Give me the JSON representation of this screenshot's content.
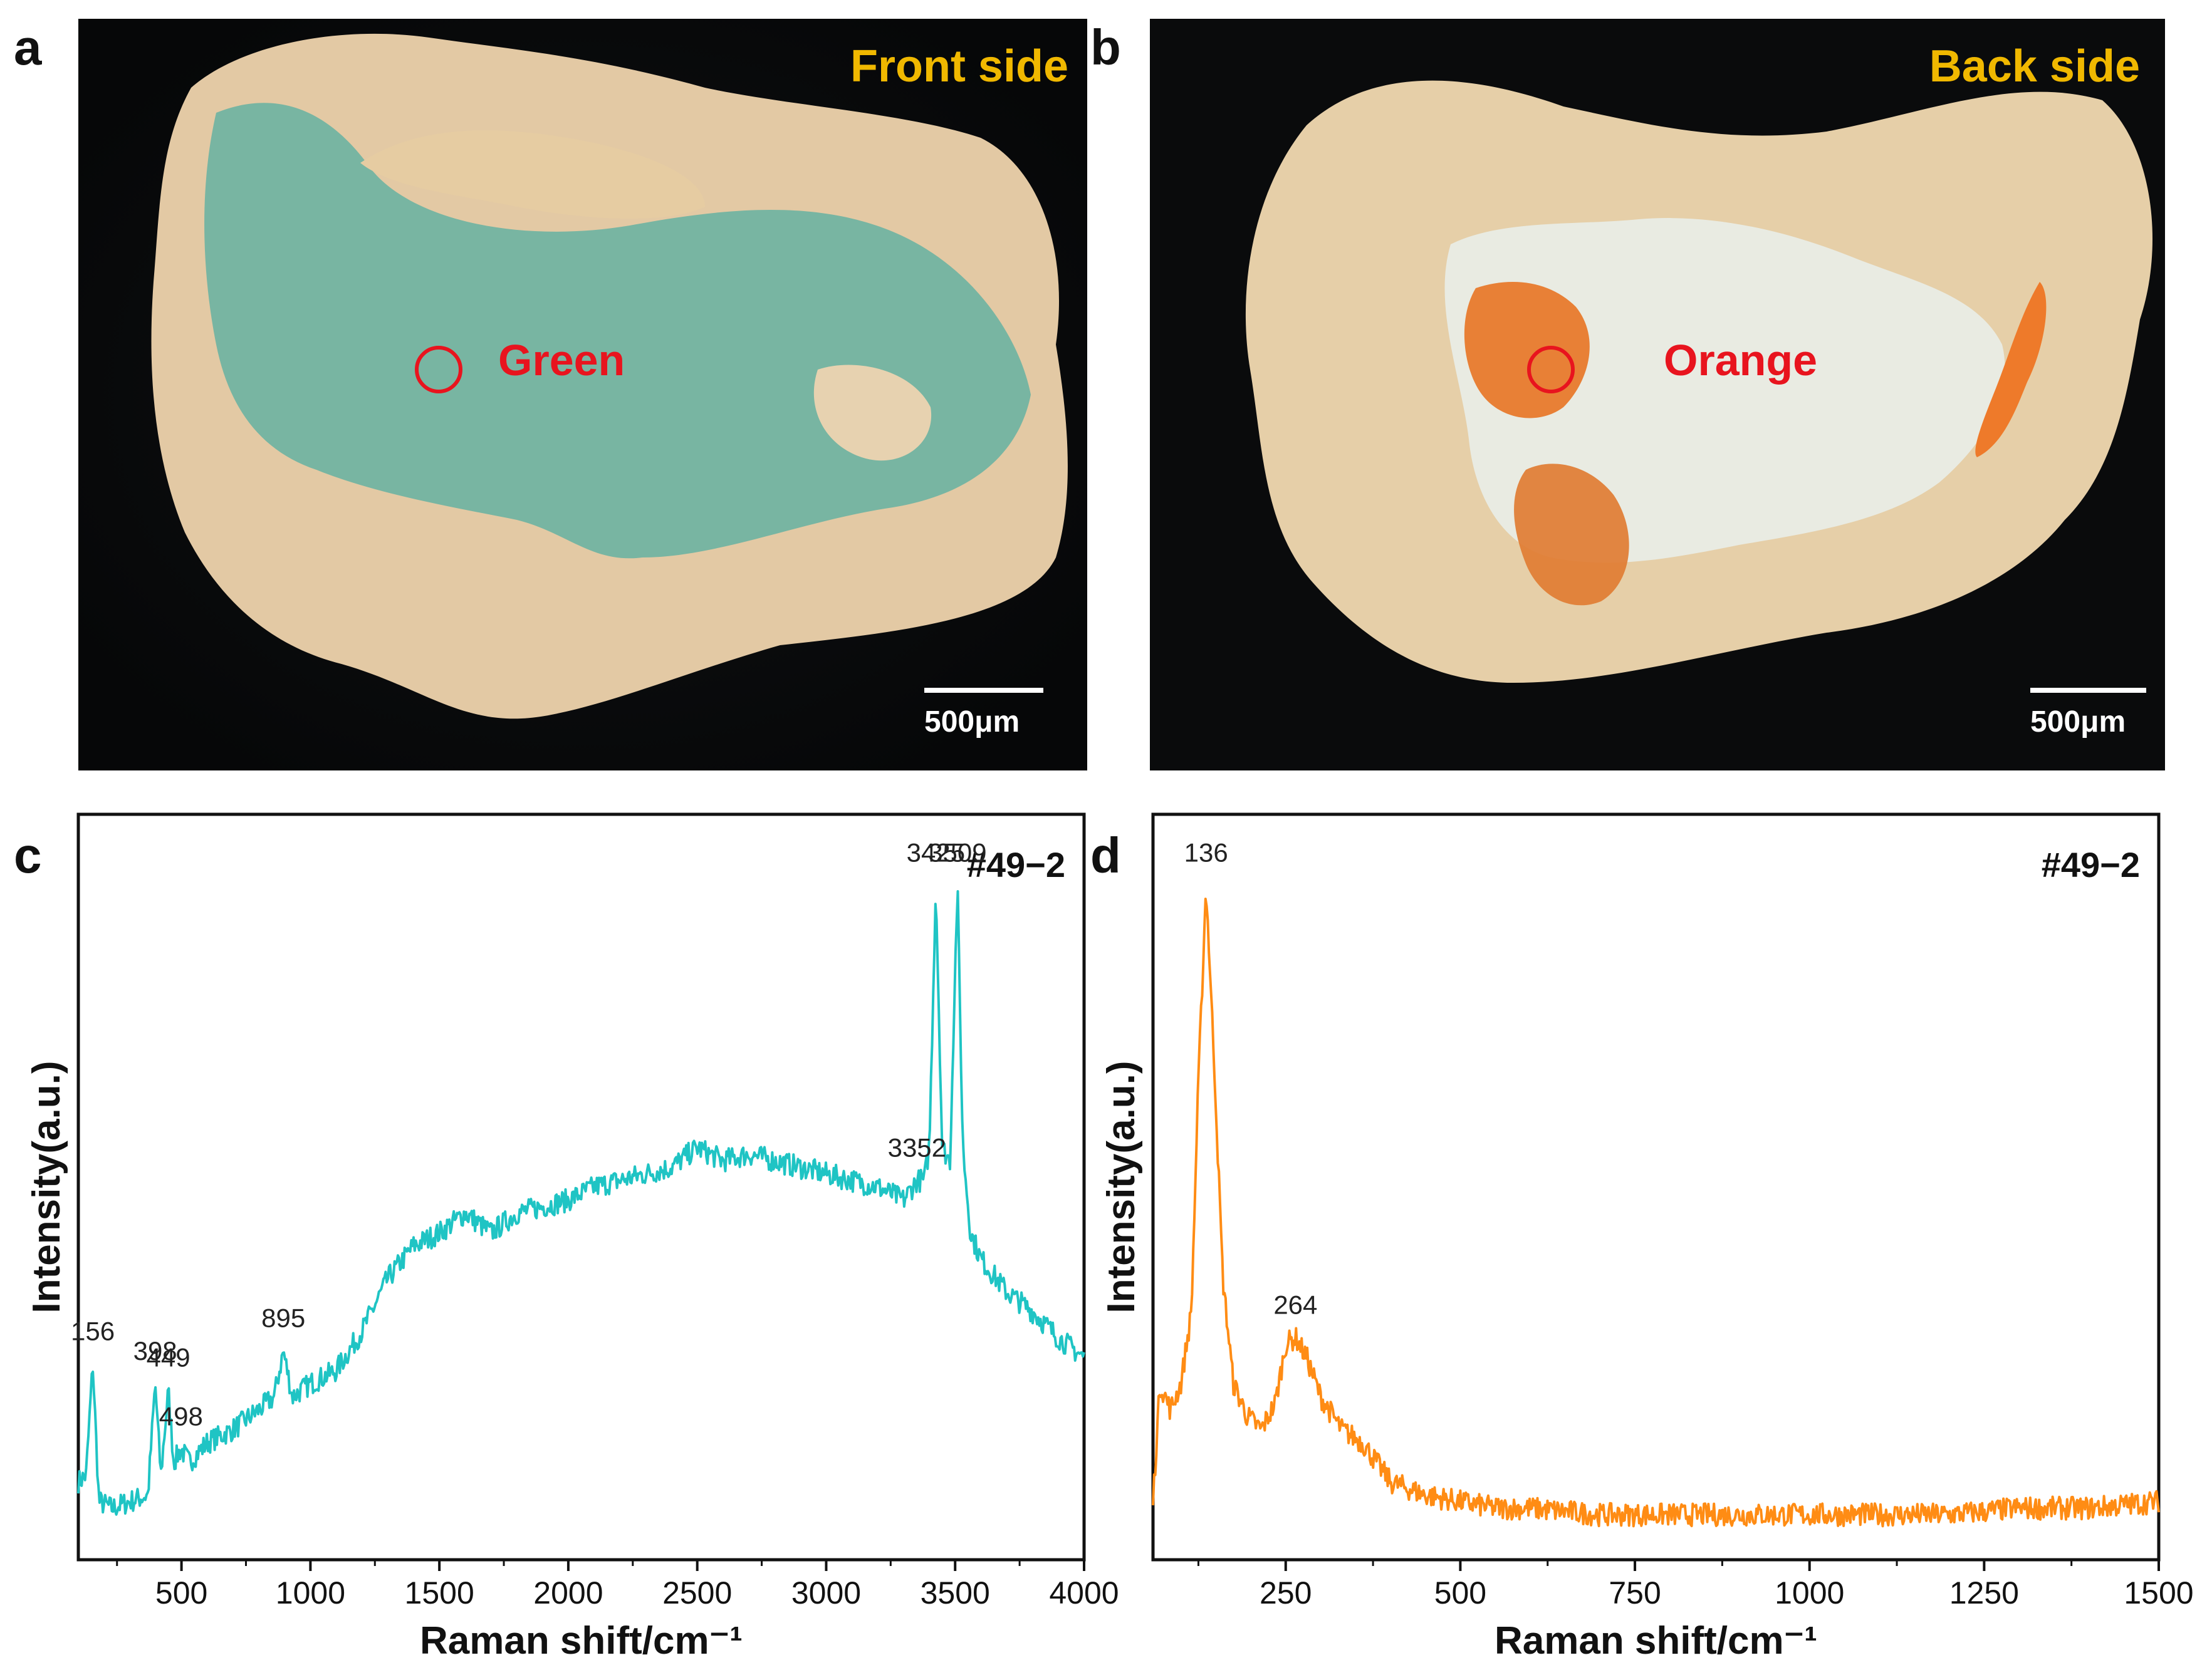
{
  "panels": {
    "a": {
      "letter": "a",
      "side_label": "Front side",
      "spot_label": "Green",
      "scale_label": "500μm",
      "colors": {
        "side_label": "#f0b800",
        "spot_label": "#e8141e",
        "background": "#101214",
        "matrix": "#e3c9a4",
        "pigment": "#6fb3a2"
      }
    },
    "b": {
      "letter": "b",
      "side_label": "Back side",
      "spot_label": "Orange",
      "scale_label": "500μm",
      "colors": {
        "side_label": "#f0b800",
        "spot_label": "#e8141e",
        "background": "#101214",
        "matrix": "#e6cfa8",
        "pigment": "#e87a2c"
      }
    }
  },
  "chart_data": [
    {
      "panel": "c",
      "type": "line",
      "sample_label": "#49−2",
      "xlabel": "Raman shift/cm⁻¹",
      "ylabel": "Intensity(a.u.)",
      "xlim": [
        100,
        4000
      ],
      "ylim": [
        0,
        1
      ],
      "xticks": [
        500,
        1000,
        1500,
        2000,
        2500,
        3000,
        3500,
        4000
      ],
      "y_ticks_labeled": false,
      "color": "#1fc4c4",
      "series": [
        {
          "points": [
            [
              100,
              0.09
            ],
            [
              130,
              0.1
            ],
            [
              156,
              0.27
            ],
            [
              180,
              0.06
            ],
            [
              230,
              0.05
            ],
            [
              300,
              0.06
            ],
            [
              370,
              0.07
            ],
            [
              398,
              0.24
            ],
            [
              420,
              0.1
            ],
            [
              449,
              0.23
            ],
            [
              470,
              0.12
            ],
            [
              498,
              0.14
            ],
            [
              530,
              0.12
            ],
            [
              600,
              0.15
            ],
            [
              700,
              0.17
            ],
            [
              800,
              0.2
            ],
            [
              860,
              0.22
            ],
            [
              895,
              0.29
            ],
            [
              930,
              0.22
            ],
            [
              1000,
              0.24
            ],
            [
              1100,
              0.26
            ],
            [
              1200,
              0.32
            ],
            [
              1300,
              0.4
            ],
            [
              1400,
              0.45
            ],
            [
              1500,
              0.47
            ],
            [
              1600,
              0.5
            ],
            [
              1700,
              0.47
            ],
            [
              1800,
              0.5
            ],
            [
              1900,
              0.51
            ],
            [
              2000,
              0.52
            ],
            [
              2100,
              0.54
            ],
            [
              2200,
              0.55
            ],
            [
              2300,
              0.56
            ],
            [
              2400,
              0.57
            ],
            [
              2500,
              0.6
            ],
            [
              2600,
              0.58
            ],
            [
              2700,
              0.59
            ],
            [
              2800,
              0.58
            ],
            [
              2900,
              0.57
            ],
            [
              3000,
              0.56
            ],
            [
              3100,
              0.55
            ],
            [
              3200,
              0.54
            ],
            [
              3300,
              0.52
            ],
            [
              3352,
              0.55
            ],
            [
              3380,
              0.55
            ],
            [
              3400,
              0.6
            ],
            [
              3425,
              1.0
            ],
            [
              3450,
              0.6
            ],
            [
              3480,
              0.58
            ],
            [
              3509,
              1.0
            ],
            [
              3530,
              0.6
            ],
            [
              3560,
              0.47
            ],
            [
              3600,
              0.43
            ],
            [
              3700,
              0.38
            ],
            [
              3800,
              0.35
            ],
            [
              3900,
              0.31
            ],
            [
              4000,
              0.28
            ]
          ]
        }
      ],
      "peak_labels": [
        {
          "x": 156,
          "text": "156"
        },
        {
          "x": 398,
          "text": "398"
        },
        {
          "x": 449,
          "text": "449"
        },
        {
          "x": 498,
          "text": "498"
        },
        {
          "x": 895,
          "text": "895"
        },
        {
          "x": 3352,
          "text": "3352"
        },
        {
          "x": 3425,
          "text": "3425"
        },
        {
          "x": 3509,
          "text": "3509"
        }
      ]
    },
    {
      "panel": "d",
      "type": "line",
      "sample_label": "#49−2",
      "xlabel": "Raman shift/cm⁻¹",
      "ylabel": "Intensity(a.u.)",
      "xlim": [
        60,
        1500
      ],
      "ylim": [
        0,
        1
      ],
      "xticks": [
        250,
        500,
        750,
        1000,
        1250,
        1500
      ],
      "y_ticks_labeled": false,
      "color": "#ff8c14",
      "series": [
        {
          "points": [
            [
              60,
              0.06
            ],
            [
              70,
              0.24
            ],
            [
              85,
              0.2
            ],
            [
              100,
              0.24
            ],
            [
              115,
              0.35
            ],
            [
              125,
              0.7
            ],
            [
              136,
              1.0
            ],
            [
              148,
              0.72
            ],
            [
              160,
              0.4
            ],
            [
              175,
              0.24
            ],
            [
              195,
              0.19
            ],
            [
              215,
              0.17
            ],
            [
              235,
              0.21
            ],
            [
              250,
              0.3
            ],
            [
              264,
              0.31
            ],
            [
              280,
              0.28
            ],
            [
              300,
              0.22
            ],
            [
              330,
              0.17
            ],
            [
              360,
              0.15
            ],
            [
              400,
              0.09
            ],
            [
              450,
              0.07
            ],
            [
              500,
              0.06
            ],
            [
              550,
              0.05
            ],
            [
              600,
              0.05
            ],
            [
              700,
              0.04
            ],
            [
              800,
              0.04
            ],
            [
              900,
              0.04
            ],
            [
              1000,
              0.04
            ],
            [
              1100,
              0.04
            ],
            [
              1200,
              0.04
            ],
            [
              1300,
              0.05
            ],
            [
              1400,
              0.05
            ],
            [
              1500,
              0.06
            ]
          ]
        }
      ],
      "peak_labels": [
        {
          "x": 136,
          "text": "136"
        },
        {
          "x": 264,
          "text": "264"
        }
      ]
    }
  ]
}
